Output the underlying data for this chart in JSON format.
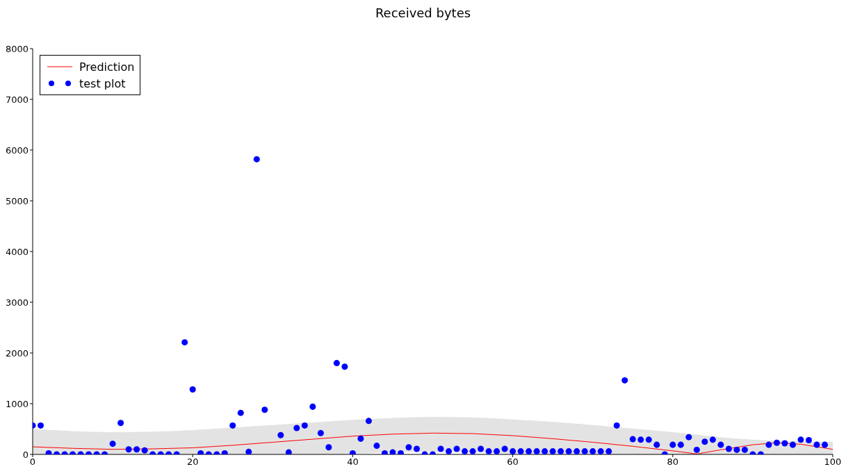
{
  "chart_data": {
    "type": "scatter",
    "title": "Received bytes",
    "xlim": [
      0,
      100
    ],
    "xticks": [
      0,
      20,
      40,
      60,
      80,
      100
    ],
    "ylim": [
      0,
      8000
    ],
    "yticks": [
      0,
      1000,
      2000,
      3000,
      4000,
      5000,
      6000,
      7000,
      8000
    ],
    "grid": false,
    "legend": "top left",
    "series": [
      {
        "name": "Prediction",
        "type": "line",
        "color": "#ff0000",
        "x": [
          0,
          5,
          10,
          15,
          20,
          25,
          30,
          35,
          40,
          45,
          50,
          55,
          60,
          65,
          70,
          75,
          80,
          83,
          86,
          90,
          93,
          96,
          100
        ],
        "values": [
          150,
          120,
          100,
          110,
          130,
          180,
          240,
          300,
          360,
          400,
          420,
          410,
          370,
          310,
          240,
          160,
          70,
          10,
          90,
          190,
          230,
          200,
          100
        ],
        "lower": [
          0,
          0,
          0,
          0,
          0,
          0,
          0,
          0,
          10,
          40,
          50,
          40,
          10,
          0,
          0,
          0,
          0,
          0,
          0,
          0,
          0,
          0,
          0
        ],
        "upper": [
          500,
          460,
          440,
          450,
          480,
          530,
          580,
          630,
          680,
          720,
          740,
          730,
          690,
          640,
          580,
          510,
          440,
          390,
          340,
          290,
          270,
          260,
          250
        ]
      },
      {
        "name": "test plot",
        "marker": "circle",
        "color": "#0000ff",
        "x": [
          0,
          1,
          2,
          3,
          4,
          5,
          6,
          7,
          8,
          9,
          10,
          11,
          12,
          13,
          14,
          15,
          16,
          17,
          18,
          19,
          20,
          21,
          22,
          23,
          24,
          25,
          26,
          27,
          28,
          29,
          31,
          32,
          33,
          34,
          35,
          36,
          37,
          38,
          39,
          40,
          41,
          42,
          43,
          44,
          45,
          46,
          47,
          48,
          49,
          50,
          51,
          52,
          53,
          54,
          55,
          56,
          57,
          58,
          59,
          60,
          61,
          62,
          63,
          64,
          65,
          66,
          67,
          68,
          69,
          70,
          71,
          72,
          73,
          74,
          75,
          76,
          77,
          78,
          79,
          80,
          81,
          82,
          83,
          84,
          85,
          86,
          87,
          88,
          89,
          90,
          91,
          92,
          93,
          94,
          95,
          96,
          97,
          98,
          99
        ],
        "values": [
          570,
          570,
          20,
          0,
          0,
          0,
          0,
          0,
          0,
          0,
          210,
          620,
          100,
          100,
          80,
          0,
          0,
          0,
          0,
          2210,
          1280,
          20,
          0,
          0,
          20,
          570,
          820,
          50,
          5820,
          880,
          380,
          40,
          520,
          570,
          940,
          420,
          140,
          1800,
          1730,
          20,
          310,
          660,
          170,
          20,
          40,
          20,
          140,
          110,
          0,
          0,
          110,
          60,
          110,
          60,
          60,
          110,
          60,
          60,
          110,
          60,
          60,
          60,
          60,
          60,
          60,
          60,
          60,
          60,
          60,
          60,
          60,
          60,
          570,
          1460,
          300,
          290,
          290,
          190,
          0,
          190,
          190,
          340,
          90,
          250,
          290,
          190,
          110,
          90,
          90,
          0,
          0,
          190,
          230,
          220,
          190,
          290,
          280,
          190,
          190
        ]
      }
    ]
  }
}
